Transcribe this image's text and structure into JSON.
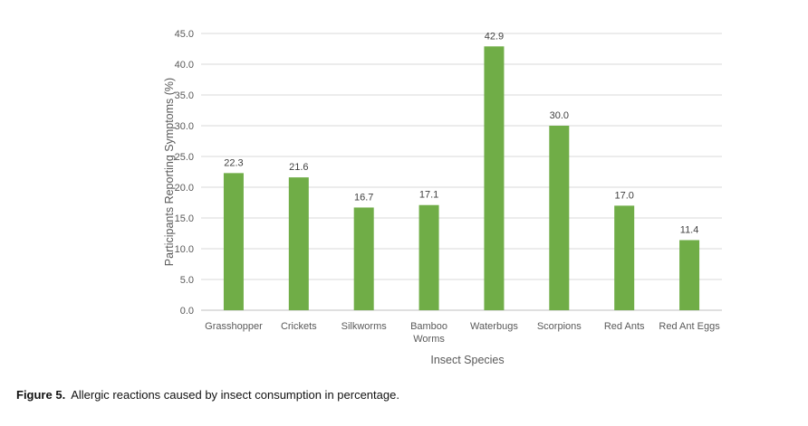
{
  "chart_data": {
    "type": "bar",
    "title": "",
    "xlabel": "Insect Species",
    "ylabel": "Participants Reporting Symptoms (%)",
    "categories": [
      "Grasshopper",
      "Crickets",
      "Silkworms",
      "Bamboo\nWorms",
      "Waterbugs",
      "Scorpions",
      "Red Ants",
      "Red Ant Eggs"
    ],
    "values": [
      22.3,
      21.6,
      16.7,
      17.1,
      42.9,
      30.0,
      17.0,
      11.4
    ],
    "data_labels": [
      "22.3",
      "21.6",
      "16.7",
      "17.1",
      "42.9",
      "30.0",
      "17.0",
      "11.4"
    ],
    "ylim": [
      0,
      45
    ],
    "yticks": [
      "0.0",
      "5.0",
      "10.0",
      "15.0",
      "20.0",
      "25.0",
      "30.0",
      "35.0",
      "40.0",
      "45.0"
    ],
    "grid": true,
    "bar_color": "#70AD47"
  },
  "caption": {
    "label": "Figure 5.",
    "text": "Allergic reactions caused by insect consumption in percentage."
  }
}
